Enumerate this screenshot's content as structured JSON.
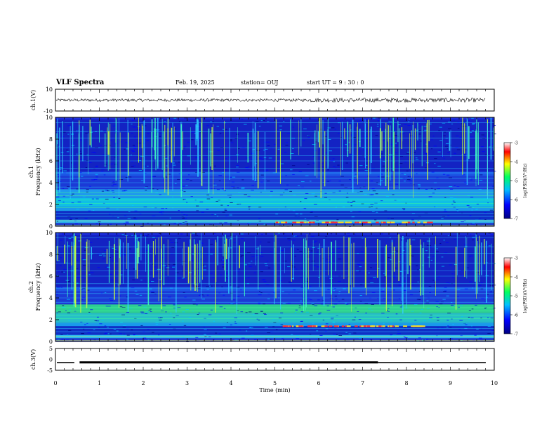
{
  "header": {
    "title": "VLF Spectra",
    "date": "Feb. 19, 2025",
    "station": "station= OUJ",
    "start_time": "start  UT =   9  : 30 : 0"
  },
  "chart_data": [
    {
      "type": "line",
      "panel": "ch.1 waveform",
      "ylabel": "ch.1(V)",
      "ylim": [
        -10,
        10
      ],
      "yticks": [
        "10",
        "-10"
      ],
      "xlim": [
        0,
        10
      ],
      "series": [
        {
          "values_description_level": 0,
          "level_V": 0.0
        }
      ],
      "color": "#000000"
    },
    {
      "type": "heatmap",
      "panel": "ch.1 spectrogram",
      "ylabel": "ch.1\nFrequency  (kHz)",
      "ylim": [
        0,
        10
      ],
      "yticks": [
        "0",
        "2",
        "4",
        "6",
        "8",
        "10"
      ],
      "xlim": [
        0,
        10
      ],
      "colorbar": {
        "label": "log(PSD)(V²/Hz)",
        "range": [
          -7,
          -3
        ],
        "ticks": [
          "-3",
          "-4",
          "-5",
          "-6",
          "-7"
        ]
      }
    },
    {
      "type": "heatmap",
      "panel": "ch.2 spectrogram",
      "ylabel": "ch.2\nFrequency  (kHz)",
      "ylim": [
        0,
        10
      ],
      "yticks": [
        "0",
        "2",
        "4",
        "6",
        "8",
        "10"
      ],
      "xlim": [
        0,
        10
      ],
      "colorbar": {
        "label": "log(PSD)(V²/Hz)",
        "range": [
          -7,
          -3
        ],
        "ticks": [
          "-3",
          "-4",
          "-5",
          "-6",
          "-7"
        ]
      }
    },
    {
      "type": "line",
      "panel": "ch.3 waveform",
      "ylabel": "ch.3(V)",
      "ylim": [
        -5,
        5
      ],
      "yticks": [
        "5",
        "0",
        "-5"
      ],
      "xlim": [
        0,
        10
      ],
      "level_V": -1.5,
      "gap": [
        0.43,
        0.55
      ]
    }
  ],
  "xaxis": {
    "label": "Time  (min)",
    "ticks": [
      "0",
      "1",
      "2",
      "3",
      "4",
      "5",
      "6",
      "7",
      "8",
      "9",
      "10"
    ]
  },
  "colors": {
    "background": "#ffffff",
    "colormap": [
      "#00008b",
      "#0000ff",
      "#00bfff",
      "#00ff80",
      "#ffff00",
      "#ff0000",
      "#ffffff"
    ]
  }
}
